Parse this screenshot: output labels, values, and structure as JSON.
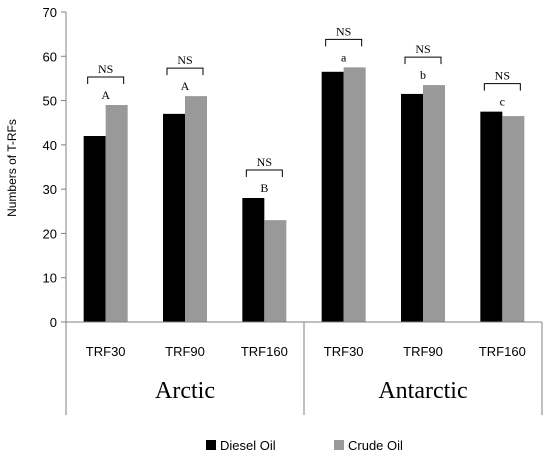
{
  "chart_data": {
    "type": "bar",
    "ylabel": "Numbers of T-RFs",
    "ylim": [
      0,
      70
    ],
    "yticks": [
      0,
      10,
      20,
      30,
      40,
      50,
      60,
      70
    ],
    "groups": [
      {
        "name": "Arctic",
        "categories": [
          "TRF30",
          "TRF90",
          "TRF160"
        ]
      },
      {
        "name": "Antarctic",
        "categories": [
          "TRF30",
          "TRF90",
          "TRF160"
        ]
      }
    ],
    "categories": [
      "TRF30",
      "TRF90",
      "TRF160",
      "TRF30",
      "TRF90",
      "TRF160"
    ],
    "series": [
      {
        "name": "Diesel Oil",
        "color": "#000000",
        "values": [
          42,
          47,
          28,
          56.5,
          51.5,
          47.5
        ]
      },
      {
        "name": "Crude Oil",
        "color": "#999999",
        "values": [
          49,
          51,
          23,
          57.5,
          53.5,
          46.5
        ]
      }
    ],
    "significance_letters": [
      "A",
      "A",
      "B",
      "a",
      "b",
      "c"
    ],
    "bracket_label": "NS",
    "legend": {
      "position": "bottom"
    },
    "grid": false
  }
}
